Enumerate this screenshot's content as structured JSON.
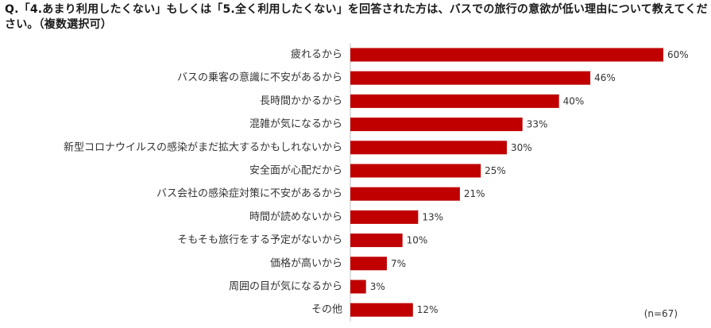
{
  "question": "Q.「4.あまり利用したくない」もしくは「5.全く利用したくない」を回答された方は、バスでの旅行の意欲が低い理由について教えてください。（複数選択可）",
  "sample_note": "(n=67)",
  "colors": {
    "bar": "#c00000",
    "axis": "#bfbfbf"
  },
  "chart_data": {
    "type": "bar",
    "orientation": "horizontal",
    "categories": [
      "疲れるから",
      "バスの乗客の意識に不安があるから",
      "長時間かかるから",
      "混雑が気になるから",
      "新型コロナウイルスの感染がまだ拡大するかもしれないから",
      "安全面が心配だから",
      "バス会社の感染症対策に不安があるから",
      "時間が読めないから",
      "そもそも旅行をする予定がないから",
      "価格が高いから",
      "周囲の目が気になるから",
      "その他"
    ],
    "values": [
      60,
      46,
      40,
      33,
      30,
      25,
      21,
      13,
      10,
      7,
      3,
      12
    ],
    "value_labels": [
      "60%",
      "46%",
      "40%",
      "33%",
      "30%",
      "25%",
      "21%",
      "13%",
      "10%",
      "7%",
      "3%",
      "12%"
    ],
    "unit": "%",
    "xlim": [
      0,
      60
    ],
    "grid": false,
    "legend": "none"
  }
}
